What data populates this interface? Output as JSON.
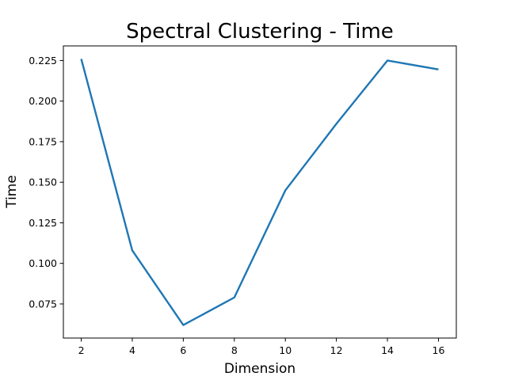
{
  "chart_data": {
    "type": "line",
    "title": "Spectral Clustering - Time",
    "xlabel": "Dimension",
    "ylabel": "Time",
    "xlim": [
      1.3,
      16.7
    ],
    "ylim": [
      0.054,
      0.234
    ],
    "x_ticks": [
      2,
      4,
      6,
      8,
      10,
      12,
      14,
      16
    ],
    "y_ticks": [
      0.075,
      0.1,
      0.125,
      0.15,
      0.175,
      0.2,
      0.225
    ],
    "y_tick_labels": [
      "0.075",
      "0.100",
      "0.125",
      "0.150",
      "0.175",
      "0.200",
      "0.225"
    ],
    "grid": false,
    "series": [
      {
        "color": "#1f77b4",
        "x": [
          2,
          4,
          6,
          8,
          10,
          12,
          14,
          16
        ],
        "y": [
          0.226,
          0.108,
          0.062,
          0.079,
          0.145,
          0.186,
          0.225,
          0.2195
        ]
      }
    ]
  }
}
